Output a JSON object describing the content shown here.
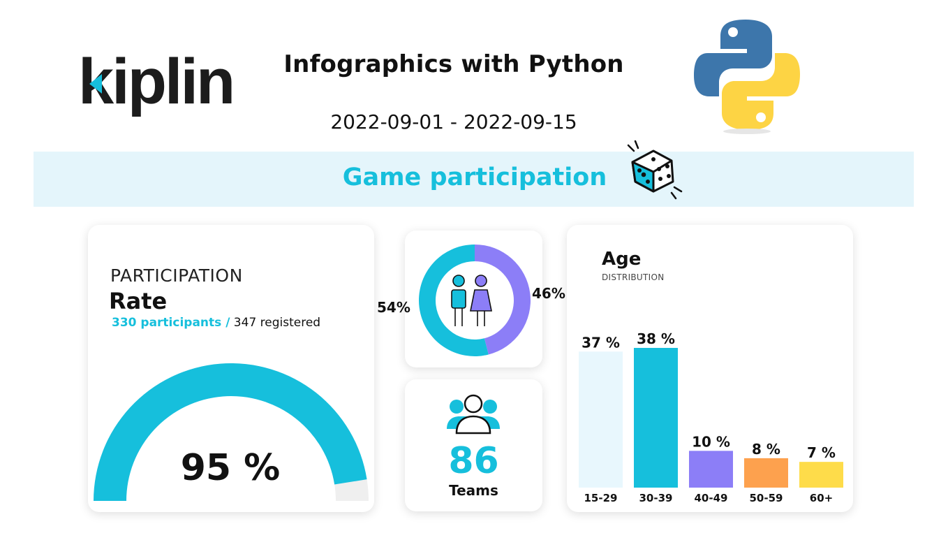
{
  "header": {
    "logo_text": "kiplin",
    "title": "Infographics with Python",
    "date_range": "2022-09-01 - 2022-09-15",
    "section_title": "Game participation"
  },
  "participation": {
    "kicker": "PARTICIPATION",
    "title": "Rate",
    "participants_text": "330 participants /",
    "registered_text": " 347 registered",
    "value_label": "95 %",
    "rate": 0.95
  },
  "gender": {
    "left_label": "54%",
    "right_label": "46%",
    "left_share": 0.54,
    "right_share": 0.46
  },
  "teams": {
    "count": "86",
    "label": "Teams"
  },
  "age": {
    "title": "Age",
    "subtitle": "DISTRIBUTION"
  },
  "colors": {
    "accent": "#16bfdc",
    "light_band": "#e4f5fb",
    "bar_light": "#e8f7fd",
    "purple": "#8c7ef7",
    "orange": "#fda14e",
    "yellow": "#fedc4a",
    "gauge_track": "#efefef"
  },
  "chart_data": {
    "type": "bar",
    "title": "Age",
    "subtitle": "DISTRIBUTION",
    "categories": [
      "15-29",
      "30-39",
      "40-49",
      "50-59",
      "60+"
    ],
    "values": [
      37,
      38,
      10,
      8,
      7
    ],
    "value_labels": [
      "37 %",
      "38 %",
      "10 %",
      "8 %",
      "7 %"
    ],
    "bar_colors": [
      "#e8f7fd",
      "#16bfdc",
      "#8c7ef7",
      "#fda14e",
      "#fedc4a"
    ],
    "ylim": [
      0,
      38
    ],
    "grid": false
  }
}
